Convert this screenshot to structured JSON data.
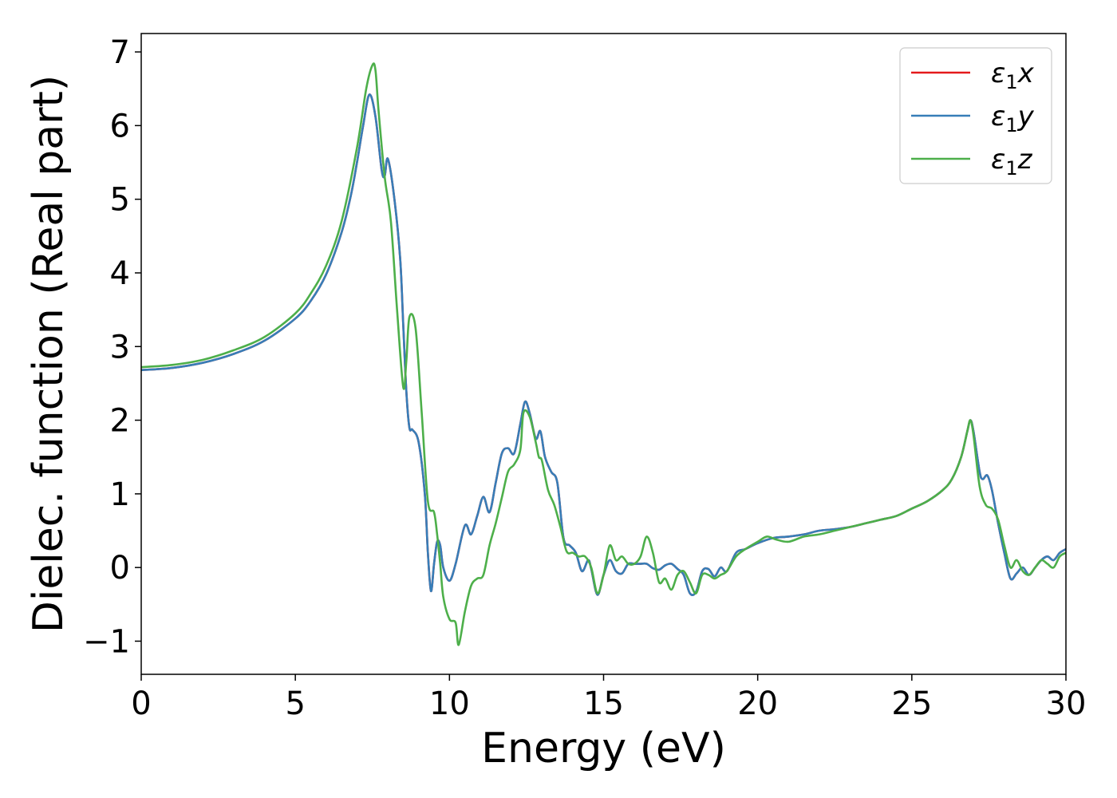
{
  "chart_data": {
    "type": "line",
    "xlabel": "Energy (eV)",
    "ylabel": "Dielec. function (Real part)",
    "xlim": [
      0,
      30
    ],
    "ylim": [
      -1.45,
      7.25
    ],
    "xticks": [
      0,
      5,
      10,
      15,
      20,
      25,
      30
    ],
    "xtick_labels": [
      "0",
      "5",
      "10",
      "15",
      "20",
      "25",
      "30"
    ],
    "yticks": [
      -1,
      0,
      1,
      2,
      3,
      4,
      5,
      6,
      7
    ],
    "ytick_labels": [
      "−1",
      "0",
      "1",
      "2",
      "3",
      "4",
      "5",
      "6",
      "7"
    ],
    "grid": false,
    "legend_position": "top-right",
    "series": [
      {
        "name": "ε1x",
        "legend_base": "ε",
        "legend_sub": "1",
        "legend_suffix": "x",
        "color": "#e41a1c",
        "x": [
          0,
          1,
          2,
          3,
          4,
          5,
          5.5,
          6,
          6.5,
          6.8,
          7.0,
          7.2,
          7.4,
          7.6,
          7.8,
          7.9,
          8.0,
          8.2,
          8.4,
          8.5,
          8.6,
          8.7,
          8.8,
          9.0,
          9.2,
          9.3,
          9.4,
          9.5,
          9.6,
          9.7,
          9.8,
          10.0,
          10.2,
          10.5,
          10.7,
          10.9,
          11.1,
          11.3,
          11.5,
          11.7,
          11.9,
          12.1,
          12.3,
          12.45,
          12.6,
          12.8,
          12.95,
          13.1,
          13.3,
          13.5,
          13.7,
          13.9,
          14.1,
          14.3,
          14.5,
          14.6,
          14.8,
          15.0,
          15.2,
          15.4,
          15.6,
          15.8,
          16.0,
          16.2,
          16.4,
          16.6,
          16.8,
          17.0,
          17.2,
          17.4,
          17.6,
          17.8,
          18.0,
          18.2,
          18.4,
          18.6,
          18.8,
          19.0,
          19.3,
          19.6,
          20.0,
          20.5,
          21.0,
          21.5,
          22.0,
          22.5,
          23.0,
          23.5,
          24.0,
          24.5,
          25.0,
          25.5,
          26.0,
          26.3,
          26.6,
          26.8,
          26.9,
          27.0,
          27.2,
          27.3,
          27.45,
          27.6,
          27.8,
          28.0,
          28.2,
          28.4,
          28.6,
          28.8,
          29.0,
          29.2,
          29.4,
          29.6,
          29.8,
          30.0
        ],
        "values": [
          2.68,
          2.71,
          2.78,
          2.9,
          3.08,
          3.38,
          3.62,
          3.98,
          4.55,
          5.05,
          5.5,
          6.0,
          6.42,
          6.12,
          5.4,
          5.32,
          5.55,
          5.05,
          4.2,
          3.3,
          2.4,
          1.9,
          1.87,
          1.7,
          1.0,
          0.2,
          -0.32,
          0.05,
          0.35,
          0.3,
          0.0,
          -0.18,
          0.05,
          0.57,
          0.45,
          0.7,
          0.96,
          0.75,
          1.15,
          1.55,
          1.62,
          1.55,
          1.95,
          2.25,
          2.1,
          1.75,
          1.85,
          1.5,
          1.3,
          1.15,
          0.4,
          0.3,
          0.2,
          -0.05,
          0.1,
          -0.02,
          -0.37,
          -0.1,
          0.1,
          -0.05,
          -0.08,
          0.05,
          0.05,
          0.05,
          0.05,
          -0.01,
          -0.03,
          0.03,
          0.05,
          -0.02,
          -0.1,
          -0.35,
          -0.33,
          -0.05,
          -0.02,
          -0.12,
          0.0,
          -0.05,
          0.2,
          0.25,
          0.33,
          0.4,
          0.42,
          0.45,
          0.5,
          0.52,
          0.55,
          0.6,
          0.65,
          0.7,
          0.8,
          0.9,
          1.05,
          1.2,
          1.5,
          1.85,
          2.0,
          1.85,
          1.3,
          1.2,
          1.25,
          1.05,
          0.6,
          0.2,
          -0.15,
          -0.08,
          0.0,
          -0.1,
          0.0,
          0.1,
          0.15,
          0.1,
          0.2,
          0.25
        ]
      },
      {
        "name": "ε1y",
        "legend_base": "ε",
        "legend_sub": "1",
        "legend_suffix": "y",
        "color": "#377eb8",
        "x": [
          0,
          1,
          2,
          3,
          4,
          5,
          5.5,
          6,
          6.5,
          6.8,
          7.0,
          7.2,
          7.4,
          7.6,
          7.8,
          7.9,
          8.0,
          8.2,
          8.4,
          8.5,
          8.6,
          8.7,
          8.8,
          9.0,
          9.2,
          9.3,
          9.4,
          9.5,
          9.6,
          9.7,
          9.8,
          10.0,
          10.2,
          10.5,
          10.7,
          10.9,
          11.1,
          11.3,
          11.5,
          11.7,
          11.9,
          12.1,
          12.3,
          12.45,
          12.6,
          12.8,
          12.95,
          13.1,
          13.3,
          13.5,
          13.7,
          13.9,
          14.1,
          14.3,
          14.5,
          14.6,
          14.8,
          15.0,
          15.2,
          15.4,
          15.6,
          15.8,
          16.0,
          16.2,
          16.4,
          16.6,
          16.8,
          17.0,
          17.2,
          17.4,
          17.6,
          17.8,
          18.0,
          18.2,
          18.4,
          18.6,
          18.8,
          19.0,
          19.3,
          19.6,
          20.0,
          20.5,
          21.0,
          21.5,
          22.0,
          22.5,
          23.0,
          23.5,
          24.0,
          24.5,
          25.0,
          25.5,
          26.0,
          26.3,
          26.6,
          26.8,
          26.9,
          27.0,
          27.2,
          27.3,
          27.45,
          27.6,
          27.8,
          28.0,
          28.2,
          28.4,
          28.6,
          28.8,
          29.0,
          29.2,
          29.4,
          29.6,
          29.8,
          30.0
        ],
        "values": [
          2.68,
          2.71,
          2.78,
          2.9,
          3.08,
          3.38,
          3.62,
          3.98,
          4.55,
          5.05,
          5.5,
          6.0,
          6.42,
          6.12,
          5.4,
          5.32,
          5.55,
          5.05,
          4.2,
          3.3,
          2.4,
          1.9,
          1.87,
          1.7,
          1.0,
          0.2,
          -0.32,
          0.05,
          0.35,
          0.3,
          0.0,
          -0.18,
          0.05,
          0.57,
          0.45,
          0.7,
          0.96,
          0.75,
          1.15,
          1.55,
          1.62,
          1.55,
          1.95,
          2.25,
          2.1,
          1.75,
          1.85,
          1.5,
          1.3,
          1.15,
          0.4,
          0.3,
          0.2,
          -0.05,
          0.1,
          -0.02,
          -0.37,
          -0.1,
          0.1,
          -0.05,
          -0.08,
          0.05,
          0.05,
          0.05,
          0.05,
          -0.01,
          -0.03,
          0.03,
          0.05,
          -0.02,
          -0.1,
          -0.35,
          -0.33,
          -0.05,
          -0.02,
          -0.12,
          0.0,
          -0.05,
          0.2,
          0.25,
          0.33,
          0.4,
          0.42,
          0.45,
          0.5,
          0.52,
          0.55,
          0.6,
          0.65,
          0.7,
          0.8,
          0.9,
          1.05,
          1.2,
          1.5,
          1.85,
          2.0,
          1.85,
          1.3,
          1.2,
          1.25,
          1.05,
          0.6,
          0.2,
          -0.15,
          -0.08,
          0.0,
          -0.1,
          0.0,
          0.1,
          0.15,
          0.1,
          0.2,
          0.25
        ]
      },
      {
        "name": "ε1z",
        "legend_base": "ε",
        "legend_sub": "1",
        "legend_suffix": "z",
        "color": "#4daf4a",
        "x": [
          0,
          1,
          2,
          3,
          4,
          5,
          5.5,
          6,
          6.5,
          7.0,
          7.3,
          7.5,
          7.6,
          7.7,
          7.9,
          8.1,
          8.3,
          8.5,
          8.6,
          8.7,
          8.9,
          9.1,
          9.3,
          9.5,
          9.6,
          9.7,
          9.8,
          10.0,
          10.2,
          10.3,
          10.5,
          10.7,
          10.9,
          11.1,
          11.3,
          11.5,
          11.7,
          11.9,
          12.1,
          12.3,
          12.4,
          12.6,
          12.8,
          12.9,
          13.0,
          13.2,
          13.4,
          13.6,
          13.8,
          14.0,
          14.2,
          14.4,
          14.6,
          14.8,
          15.0,
          15.2,
          15.4,
          15.6,
          15.8,
          16.0,
          16.2,
          16.4,
          16.6,
          16.8,
          17.0,
          17.2,
          17.4,
          17.6,
          17.8,
          18.0,
          18.2,
          18.4,
          18.6,
          18.8,
          19.0,
          19.3,
          19.6,
          20.0,
          20.3,
          20.6,
          21.0,
          21.5,
          22.0,
          22.5,
          23.0,
          23.5,
          24.0,
          24.5,
          25.0,
          25.5,
          26.0,
          26.3,
          26.6,
          26.8,
          26.9,
          27.0,
          27.2,
          27.4,
          27.6,
          27.8,
          28.0,
          28.2,
          28.4,
          28.6,
          28.8,
          29.0,
          29.2,
          29.4,
          29.6,
          29.8,
          30.0
        ],
        "values": [
          2.72,
          2.75,
          2.82,
          2.95,
          3.13,
          3.45,
          3.72,
          4.1,
          4.7,
          5.7,
          6.5,
          6.82,
          6.75,
          6.2,
          5.3,
          4.7,
          3.5,
          2.45,
          2.8,
          3.4,
          3.25,
          2.1,
          0.9,
          0.75,
          0.45,
          0.05,
          -0.4,
          -0.7,
          -0.75,
          -1.05,
          -0.6,
          -0.25,
          -0.15,
          -0.1,
          0.3,
          0.6,
          0.95,
          1.3,
          1.4,
          1.6,
          2.1,
          2.05,
          1.7,
          1.5,
          1.45,
          1.05,
          0.85,
          0.55,
          0.22,
          0.2,
          0.15,
          0.15,
          0.0,
          -0.35,
          -0.1,
          0.3,
          0.1,
          0.15,
          0.05,
          0.05,
          0.15,
          0.42,
          0.2,
          -0.2,
          -0.15,
          -0.3,
          -0.1,
          -0.05,
          -0.2,
          -0.35,
          -0.1,
          -0.1,
          -0.15,
          -0.1,
          -0.05,
          0.15,
          0.25,
          0.35,
          0.42,
          0.38,
          0.35,
          0.42,
          0.45,
          0.5,
          0.55,
          0.6,
          0.65,
          0.7,
          0.8,
          0.9,
          1.05,
          1.2,
          1.5,
          1.85,
          2.0,
          1.8,
          1.1,
          0.85,
          0.8,
          0.65,
          0.3,
          0.0,
          0.1,
          -0.05,
          -0.1,
          0.0,
          0.1,
          0.05,
          0.0,
          0.15,
          0.2
        ]
      }
    ]
  }
}
